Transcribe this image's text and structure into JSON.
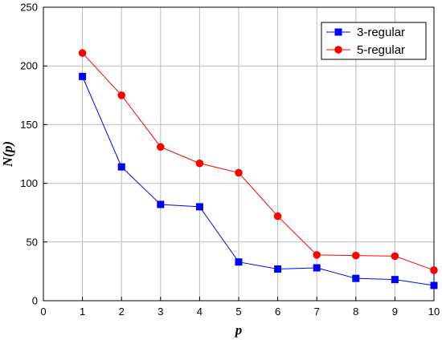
{
  "chart_data": {
    "type": "line",
    "xlabel": "p",
    "ylabel": "N(p)",
    "xlim": [
      0,
      10
    ],
    "ylim": [
      0,
      250
    ],
    "xticks": [
      0,
      1,
      2,
      3,
      4,
      5,
      6,
      7,
      8,
      9,
      10
    ],
    "yticks": [
      0,
      50,
      100,
      150,
      200,
      250
    ],
    "grid": true,
    "legend_position": "top-right",
    "x": [
      1,
      2,
      3,
      4,
      5,
      6,
      7,
      8,
      9,
      10
    ],
    "series": [
      {
        "name": "3-regular",
        "color": "#0000ff",
        "marker": "square",
        "values": [
          191,
          114,
          82,
          80,
          33,
          27,
          28,
          19,
          18,
          13
        ]
      },
      {
        "name": "5-regular",
        "color": "#ff0000",
        "marker": "circle",
        "values": [
          211,
          175,
          131,
          117,
          109,
          72,
          39,
          38.5,
          38,
          26
        ]
      }
    ]
  }
}
